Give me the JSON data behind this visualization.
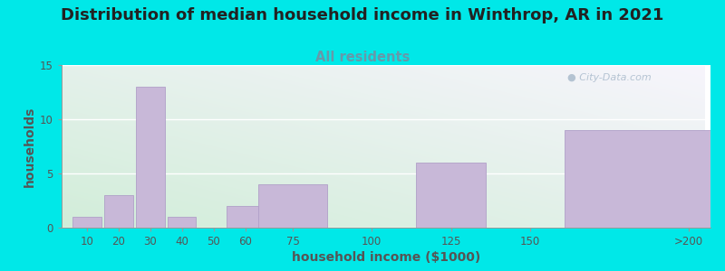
{
  "title": "Distribution of median household income in Winthrop, AR in 2021",
  "subtitle": "All residents",
  "xlabel": "household income ($1000)",
  "ylabel": "households",
  "background_color": "#00e8e8",
  "bar_color": "#c8b8d8",
  "bar_edge_color": "#b0a0c8",
  "values": [
    1,
    3,
    13,
    1,
    0,
    2,
    4,
    0,
    6,
    0,
    9
  ],
  "ylim": [
    0,
    15
  ],
  "yticks": [
    0,
    5,
    10,
    15
  ],
  "title_fontsize": 13,
  "subtitle_fontsize": 10.5,
  "axis_label_fontsize": 10,
  "tick_fontsize": 8.5,
  "watermark": "  City-Data.com",
  "title_color": "#222222",
  "subtitle_color": "#6699aa",
  "label_color": "#555555",
  "watermark_color": "#aabbcc"
}
